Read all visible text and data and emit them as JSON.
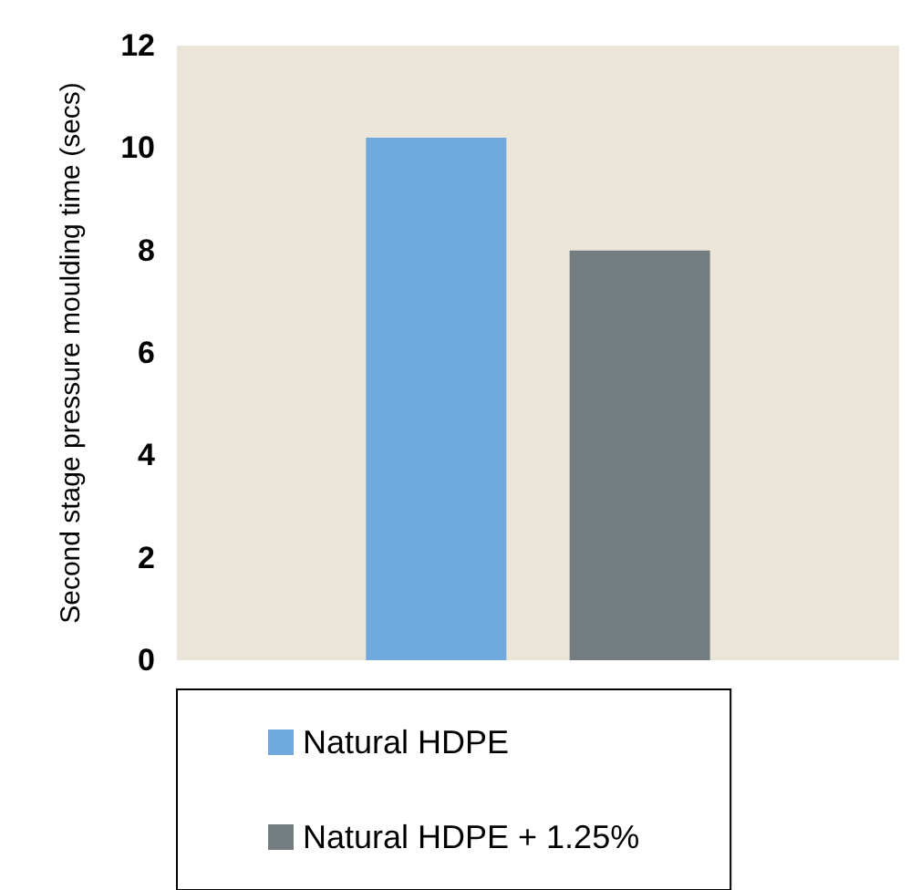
{
  "chart_data": {
    "type": "bar",
    "ylabel": "Second stage pressure moulding time (secs)",
    "categories": [
      null
    ],
    "series": [
      {
        "name": "Natural HDPE",
        "color": "#6fa8dc",
        "values": [
          10.2
        ]
      },
      {
        "name": "Natural HDPE + 1.25%",
        "color": "#737d80",
        "values": [
          8.0
        ]
      }
    ],
    "ylim": [
      0,
      12
    ],
    "yticks": [
      0,
      2,
      4,
      6,
      8,
      10,
      12
    ],
    "grid": false,
    "legend": "bottom"
  }
}
